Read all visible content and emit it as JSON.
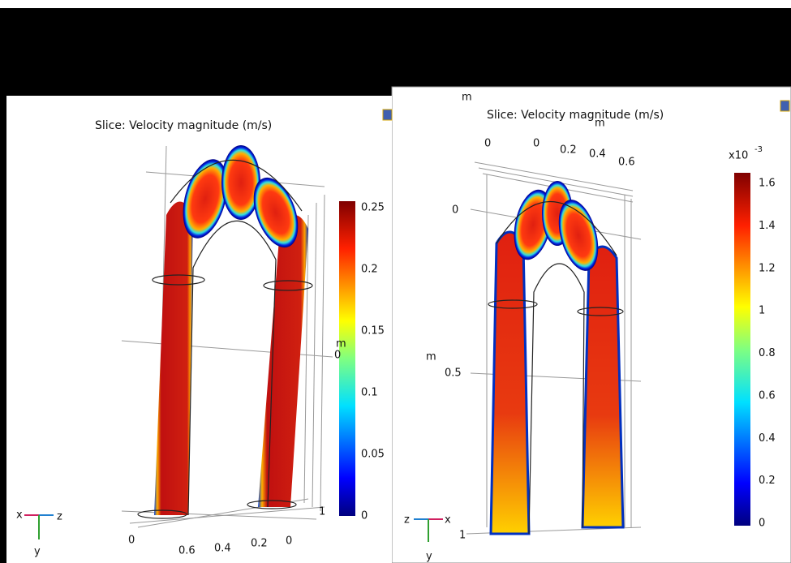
{
  "panels": [
    {
      "title": "Slice: Velocity magnitude (m/s)",
      "colorbar": {
        "ticks": [
          "0.25",
          "0.2",
          "0.15",
          "0.1",
          "0.05",
          "0"
        ]
      },
      "axis_labels": [
        "m",
        "0",
        "0",
        "0.6",
        "0.4",
        "0.2",
        "0",
        "1"
      ],
      "triad": [
        "x",
        "z",
        "y"
      ]
    },
    {
      "title": "Slice: Velocity magnitude (m/s)",
      "colorbar": {
        "multiplier": "x10",
        "exponent": "-3",
        "ticks": [
          "1.6",
          "1.4",
          "1.2",
          "1",
          "0.8",
          "0.6",
          "0.4",
          "0.2",
          "0"
        ]
      },
      "axis_labels": [
        "m",
        "0",
        "0",
        "0.2",
        "0.4",
        "0.6",
        "m",
        "0",
        "m",
        "0.5",
        "1"
      ],
      "triad": [
        "z",
        "x",
        "y"
      ]
    }
  ]
}
